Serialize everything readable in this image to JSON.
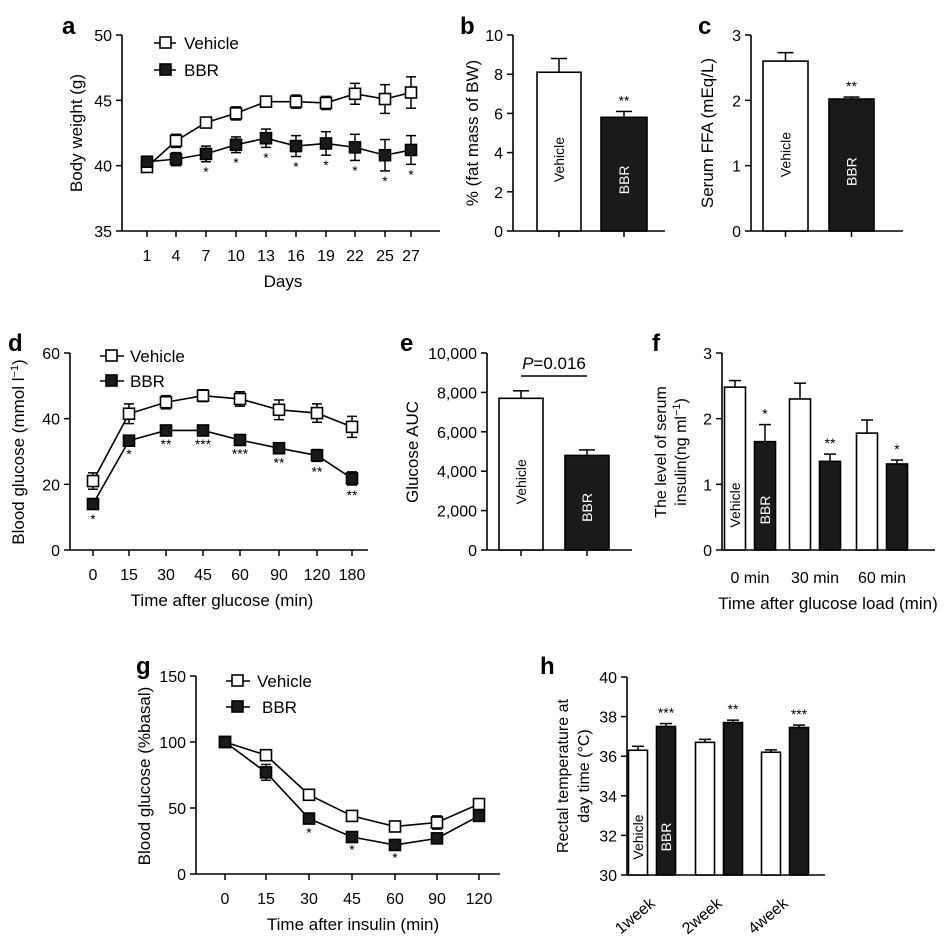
{
  "figure": {
    "panel_letters": [
      "a",
      "b",
      "c",
      "d",
      "e",
      "f",
      "g",
      "h"
    ]
  },
  "chart_data": [
    {
      "panel": "a",
      "type": "line",
      "xlabel": "Days",
      "ylabel": "Body weight (g)",
      "x": [
        "1",
        "4",
        "7",
        "10",
        "13",
        "16",
        "19",
        "22",
        "25",
        "27"
      ],
      "ylim": [
        35,
        50
      ],
      "yticks": [
        "35",
        "40",
        "45",
        "50"
      ],
      "legend": [
        "Vehicle",
        "BBR"
      ],
      "series": [
        {
          "name": "Vehicle",
          "marker": "open-square",
          "values": [
            39.9,
            41.9,
            43.3,
            44.0,
            44.9,
            44.9,
            44.8,
            45.5,
            45.1,
            45.6
          ],
          "errors": [
            0.4,
            0.5,
            0.4,
            0.5,
            0.4,
            0.5,
            0.5,
            0.8,
            1.1,
            1.2
          ]
        },
        {
          "name": "BBR",
          "marker": "filled-square",
          "values": [
            40.3,
            40.5,
            40.9,
            41.6,
            42.1,
            41.5,
            41.7,
            41.4,
            40.8,
            41.2
          ],
          "errors": [
            0.4,
            0.5,
            0.6,
            0.6,
            0.7,
            0.8,
            0.9,
            1.0,
            1.2,
            1.1
          ]
        }
      ],
      "annotations": [
        "",
        "",
        "*",
        "*",
        "*",
        "*",
        "*",
        "*",
        "*",
        "*"
      ]
    },
    {
      "panel": "b",
      "type": "bar",
      "ylabel": "% (fat mass of BW)",
      "ylim": [
        0,
        10
      ],
      "yticks": [
        "0",
        "2",
        "4",
        "6",
        "8",
        "10"
      ],
      "categories": [
        "Vehicle",
        "BBR"
      ],
      "values": [
        8.1,
        5.8
      ],
      "errors": [
        0.7,
        0.3
      ],
      "annotations": [
        "",
        "**"
      ]
    },
    {
      "panel": "c",
      "type": "bar",
      "ylabel": "Serum FFA (mEq/L)",
      "ylim": [
        0,
        3
      ],
      "yticks": [
        "0",
        "1",
        "2",
        "3"
      ],
      "categories": [
        "Vehicle",
        "BBR"
      ],
      "values": [
        2.6,
        2.02
      ],
      "errors": [
        0.13,
        0.03
      ],
      "annotations": [
        "",
        "**"
      ]
    },
    {
      "panel": "d",
      "type": "line",
      "xlabel": "Time after glucose (min)",
      "ylabel": "Blood glucose (mmol l",
      "ylabel_sup": "−1",
      "ylabel_end": ")",
      "x": [
        "0",
        "15",
        "30",
        "45",
        "60",
        "90",
        "120",
        "180"
      ],
      "ylim": [
        0,
        60
      ],
      "yticks": [
        "0",
        "20",
        "40",
        "60"
      ],
      "legend": [
        "Vehicle",
        "BBR"
      ],
      "series": [
        {
          "name": "Vehicle",
          "marker": "open-square",
          "values": [
            21,
            41.5,
            45,
            47,
            46,
            42.7,
            41.7,
            37.5
          ],
          "errors": [
            2.5,
            3,
            2,
            1.8,
            2.2,
            3,
            2.8,
            3.2
          ]
        },
        {
          "name": "BBR",
          "marker": "filled-square",
          "values": [
            14,
            33.3,
            36.4,
            36.4,
            33.5,
            31,
            28.8,
            21.8
          ],
          "errors": [
            1.5,
            1,
            1,
            1,
            1,
            1.3,
            1.8,
            2
          ]
        }
      ],
      "annotations": [
        "*",
        "*",
        "**",
        "***",
        "***",
        "**",
        "**",
        "**"
      ]
    },
    {
      "panel": "e",
      "type": "bar",
      "ylabel": "Glucose AUC",
      "ylim": [
        0,
        10000
      ],
      "yticks": [
        "0",
        "2,000",
        "4,000",
        "6,000",
        "8,000",
        "10,000"
      ],
      "categories": [
        "Vehicle",
        "BBR"
      ],
      "values": [
        7700,
        4800
      ],
      "errors": [
        380,
        280
      ],
      "p_label": "P",
      "p_text": "=0.016"
    },
    {
      "panel": "f",
      "type": "bar",
      "xlabel": "Time after glucose load (min)",
      "ylabel_line1": "The level of serum",
      "ylabel_line2": "insulin(ng ml",
      "ylabel_sup": "−1",
      "ylabel_end": ")",
      "ylim": [
        0,
        3
      ],
      "yticks": [
        "0",
        "1",
        "2",
        "3"
      ],
      "categories": [
        "0 min",
        "30 min",
        "60 min"
      ],
      "series": [
        {
          "name": "Vehicle",
          "values": [
            2.48,
            2.3,
            1.78
          ],
          "errors": [
            0.1,
            0.24,
            0.2
          ]
        },
        {
          "name": "BBR",
          "values": [
            1.65,
            1.35,
            1.31
          ],
          "errors": [
            0.26,
            0.11,
            0.06
          ]
        }
      ],
      "annotations": [
        "*",
        "**",
        "*"
      ]
    },
    {
      "panel": "g",
      "type": "line",
      "xlabel": "Time after insulin (min)",
      "ylabel": "Blood glucose (%basal)",
      "x": [
        "0",
        "15",
        "30",
        "45",
        "60",
        "90",
        "120"
      ],
      "ylim": [
        0,
        150
      ],
      "yticks": [
        "0",
        "50",
        "100",
        "150"
      ],
      "legend": [
        "Vehicle",
        "BBR"
      ],
      "series": [
        {
          "name": "Vehicle",
          "marker": "open-square",
          "values": [
            100,
            90,
            60,
            44,
            36,
            39,
            53
          ],
          "errors": [
            0,
            4,
            3,
            2,
            2,
            5,
            3
          ]
        },
        {
          "name": "BBR",
          "marker": "filled-square",
          "values": [
            100,
            77,
            42,
            28,
            22,
            27,
            44
          ],
          "errors": [
            0,
            6,
            3,
            2,
            2,
            2,
            3
          ]
        }
      ],
      "annotations": [
        "",
        "",
        "*",
        "*",
        "*",
        "",
        ""
      ]
    },
    {
      "panel": "h",
      "type": "bar",
      "ylabel_line1": "Rectal temperature at",
      "ylabel_line2": "day time (°C)",
      "ylim": [
        30,
        40
      ],
      "yticks": [
        "30",
        "32",
        "34",
        "36",
        "38",
        "40"
      ],
      "categories": [
        "1week",
        "2week",
        "4week"
      ],
      "series": [
        {
          "name": "Vehicle",
          "values": [
            36.3,
            36.7,
            36.2
          ],
          "errors": [
            0.2,
            0.15,
            0.12
          ]
        },
        {
          "name": "BBR",
          "values": [
            37.5,
            37.7,
            37.45
          ],
          "errors": [
            0.15,
            0.12,
            0.12
          ]
        }
      ],
      "annotations": [
        "***",
        "**",
        "***"
      ]
    }
  ]
}
